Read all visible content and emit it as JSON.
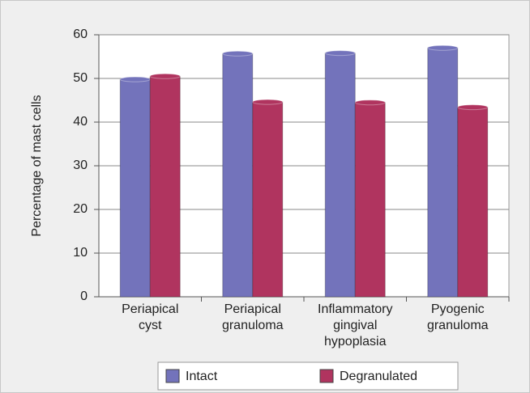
{
  "chart_data": {
    "type": "bar",
    "y_label": "Percentage of mast cells",
    "categories": [
      "Periapical cyst",
      "Periapical granuloma",
      "Inflammatory gingival hypoplasia",
      "Pyogenic granuloma"
    ],
    "series": [
      {
        "name": "Intact",
        "color": "#7373bb",
        "values": [
          49.8,
          55.7,
          55.8,
          57
        ]
      },
      {
        "name": "Degranulated",
        "color": "#b0345f",
        "values": [
          50.5,
          44.6,
          44.5,
          43.4
        ]
      }
    ],
    "ylim": [
      0,
      60
    ],
    "yticks": [
      0,
      10,
      20,
      30,
      40,
      50,
      60
    ],
    "grid": true,
    "legend": "bottom"
  }
}
